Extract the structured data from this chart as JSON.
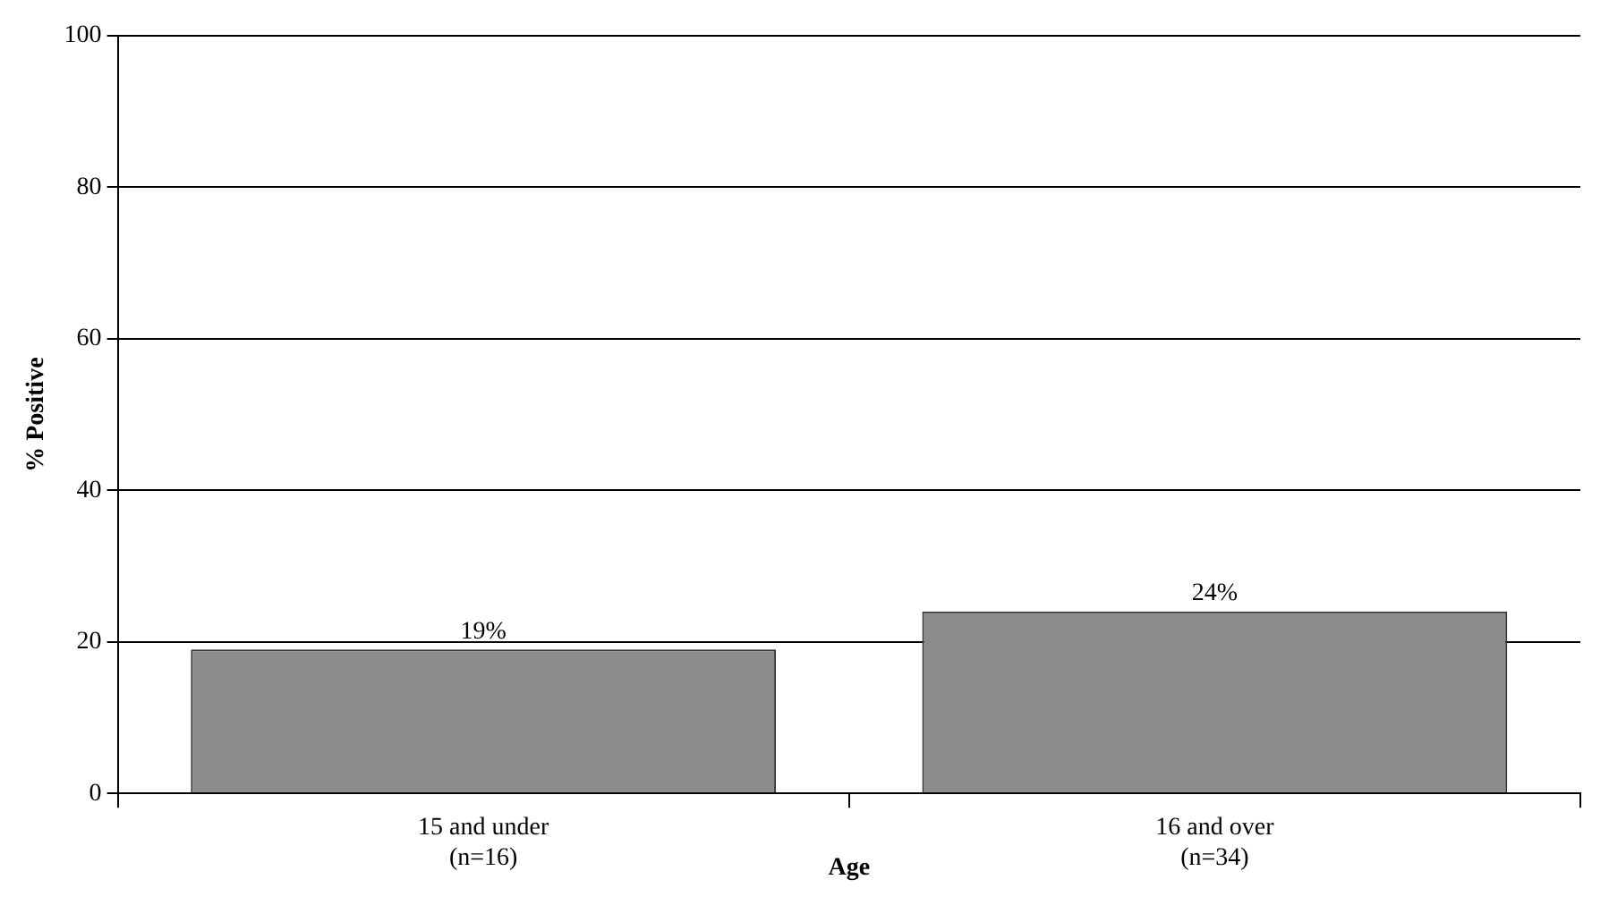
{
  "chart_data": {
    "type": "bar",
    "xlabel": "Age",
    "ylabel": "% Positive",
    "categories": [
      "15 and under\n(n=16)",
      "16 and over\n(n=34)"
    ],
    "values": [
      19,
      24
    ],
    "value_labels": [
      "19%",
      "24%"
    ],
    "color": "#8c8c8c",
    "ylim": [
      0,
      100
    ],
    "yticks": [
      0,
      20,
      40,
      60,
      80,
      100
    ],
    "grid": "y",
    "legend": false
  }
}
